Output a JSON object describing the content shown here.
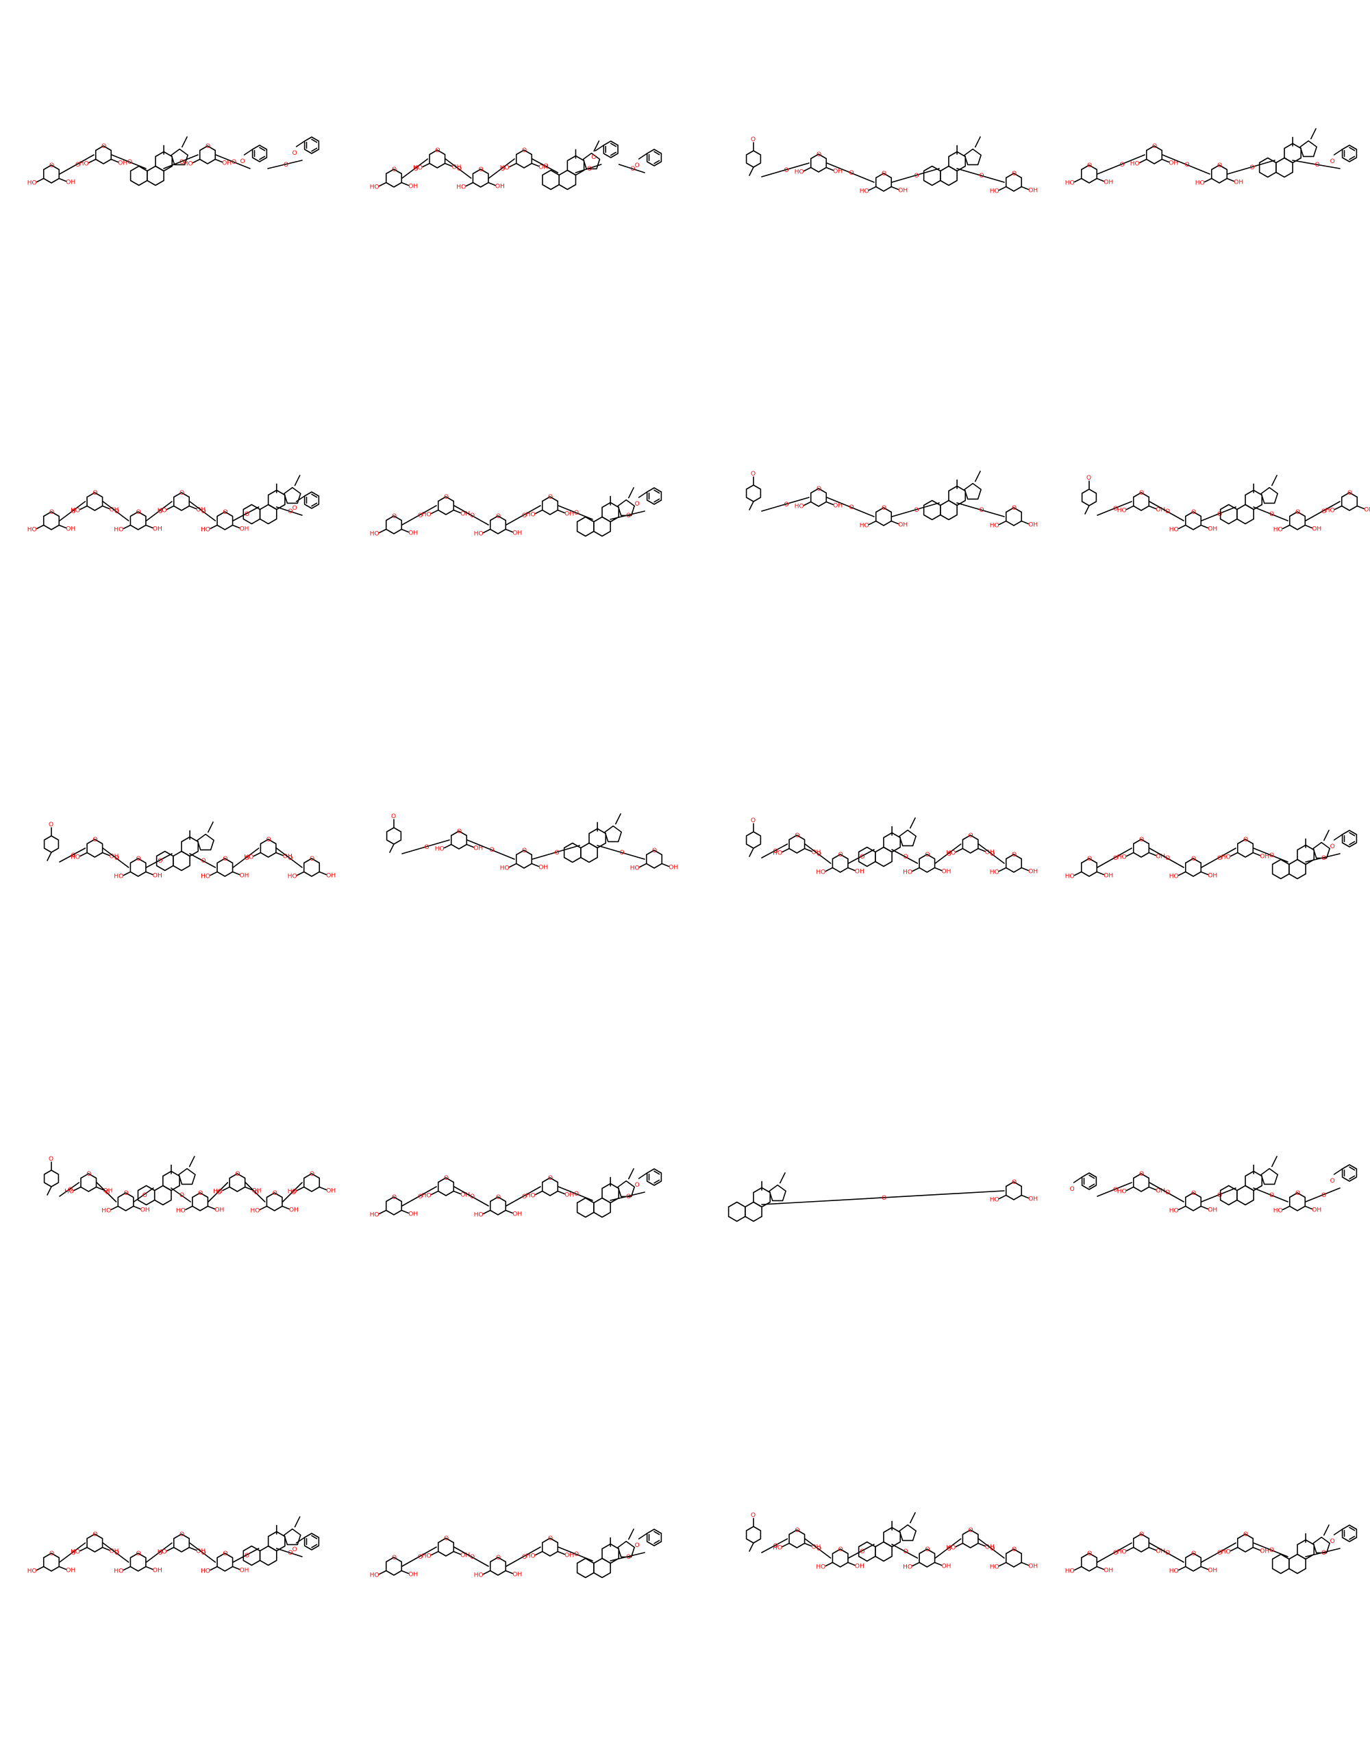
{
  "grid": {
    "rows": 5,
    "cols": 4
  },
  "atom_labels": {
    "hydroxyl": "OH",
    "oxygen": "O",
    "hydroxyl_left": "HO"
  },
  "colors": {
    "bond": "#000000",
    "heteroatom": "#ff0000",
    "background": "#ffffff"
  },
  "molecules": [
    {
      "id": 1,
      "motifs": [
        "sugar",
        "sugar",
        "steroid",
        "sugar",
        "benzoyl",
        "benzoyl"
      ]
    },
    {
      "id": 2,
      "motifs": [
        "sugar",
        "sugar",
        "sugar",
        "sugar",
        "steroid",
        "benzoyl",
        "benzoyl"
      ]
    },
    {
      "id": 3,
      "motifs": [
        "aryl",
        "sugar",
        "sugar",
        "steroid",
        "sugar"
      ]
    },
    {
      "id": 4,
      "motifs": [
        "sugar",
        "sugar",
        "sugar",
        "steroid",
        "benzoyl"
      ]
    },
    {
      "id": 5,
      "motifs": [
        "sugar",
        "sugar",
        "sugar",
        "sugar",
        "sugar",
        "steroid",
        "benzoyl"
      ]
    },
    {
      "id": 6,
      "motifs": [
        "sugar",
        "sugar",
        "sugar",
        "sugar",
        "steroid",
        "benzoyl"
      ]
    },
    {
      "id": 7,
      "motifs": [
        "aryl",
        "sugar",
        "sugar",
        "steroid",
        "sugar"
      ]
    },
    {
      "id": 8,
      "motifs": [
        "aryl",
        "sugar",
        "sugar",
        "steroid",
        "sugar",
        "sugar"
      ]
    },
    {
      "id": 9,
      "motifs": [
        "aryl",
        "sugar",
        "sugar",
        "steroid",
        "sugar",
        "sugar",
        "sugar"
      ]
    },
    {
      "id": 10,
      "motifs": [
        "aryl",
        "sugar",
        "sugar",
        "steroid",
        "sugar"
      ]
    },
    {
      "id": 11,
      "motifs": [
        "aryl",
        "sugar",
        "sugar",
        "steroid",
        "sugar",
        "sugar",
        "sugar"
      ]
    },
    {
      "id": 12,
      "motifs": [
        "sugar",
        "sugar",
        "sugar",
        "sugar",
        "steroid",
        "benzoyl"
      ]
    },
    {
      "id": 13,
      "motifs": [
        "aryl",
        "sugar",
        "sugar",
        "steroid",
        "sugar",
        "sugar",
        "sugar",
        "sugar"
      ]
    },
    {
      "id": 14,
      "motifs": [
        "sugar",
        "sugar",
        "sugar",
        "sugar",
        "steroid",
        "benzoyl"
      ]
    },
    {
      "id": 15,
      "motifs": [
        "steroid",
        "sugar"
      ]
    },
    {
      "id": 16,
      "motifs": [
        "benzoyl",
        "sugar",
        "sugar",
        "steroid",
        "sugar",
        "benzoyl"
      ]
    },
    {
      "id": 17,
      "motifs": [
        "sugar",
        "sugar",
        "sugar",
        "sugar",
        "sugar",
        "steroid",
        "benzoyl"
      ]
    },
    {
      "id": 18,
      "motifs": [
        "sugar",
        "sugar",
        "sugar",
        "sugar",
        "steroid",
        "benzoyl"
      ]
    },
    {
      "id": 19,
      "motifs": [
        "aryl",
        "sugar",
        "sugar",
        "steroid",
        "sugar",
        "sugar",
        "sugar"
      ]
    },
    {
      "id": 20,
      "motifs": [
        "sugar",
        "sugar",
        "sugar",
        "sugar",
        "steroid",
        "benzoyl"
      ]
    }
  ]
}
